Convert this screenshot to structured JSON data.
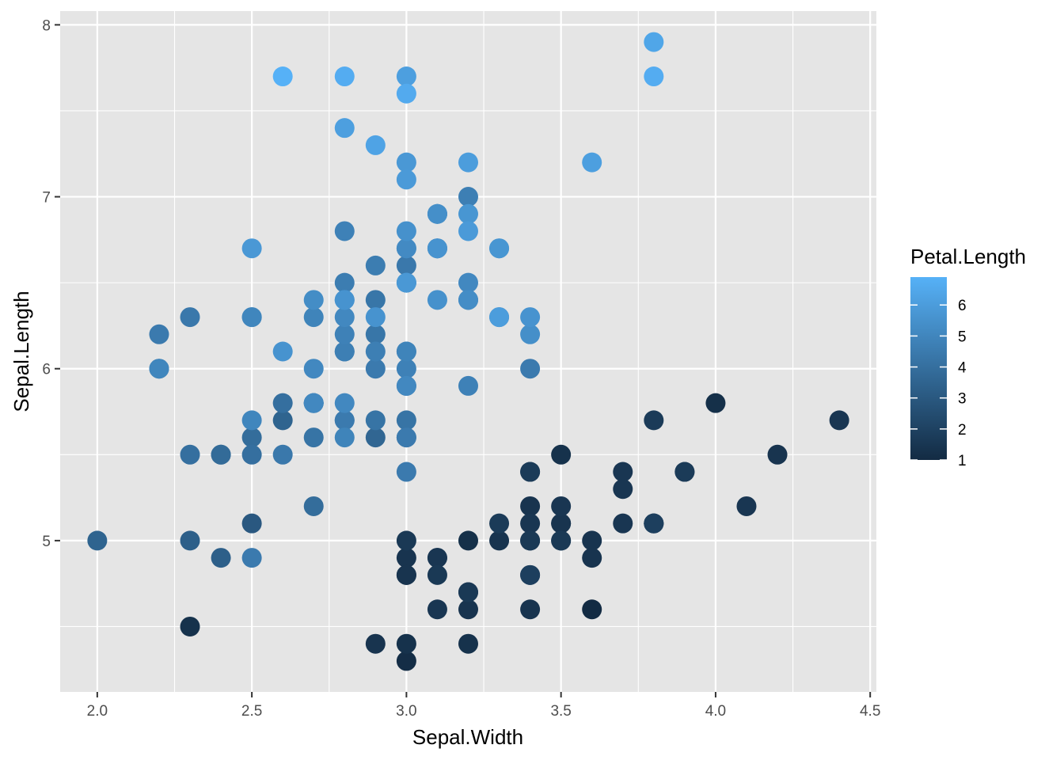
{
  "chart_data": {
    "type": "scatter",
    "title": "",
    "xlabel": "Sepal.Width",
    "ylabel": "Sepal.Length",
    "xlim": [
      1.88,
      4.52
    ],
    "ylim": [
      4.12,
      8.08
    ],
    "x_ticks": [
      2.0,
      2.5,
      3.0,
      3.5,
      4.0,
      4.5
    ],
    "x_tick_labels": [
      "2.0",
      "2.5",
      "3.0",
      "3.5",
      "4.0",
      "4.5"
    ],
    "y_ticks": [
      5,
      6,
      7,
      8
    ],
    "y_tick_labels": [
      "5",
      "6",
      "7",
      "8"
    ],
    "grid": true,
    "panel_background": "#e5e5e5",
    "grid_color": "#ffffff",
    "color_by": "Petal.Length",
    "legend": {
      "title": "Petal.Length",
      "position": "right",
      "type": "colorbar",
      "low_color": "#132b43",
      "high_color": "#56b1f7",
      "range": [
        1.0,
        6.9
      ],
      "ticks": [
        1,
        2,
        3,
        4,
        5,
        6
      ],
      "tick_labels": [
        "1",
        "2",
        "3",
        "4",
        "5",
        "6"
      ]
    },
    "points": [
      [
        3.5,
        5.1,
        1.4
      ],
      [
        3.0,
        4.9,
        1.4
      ],
      [
        3.2,
        4.7,
        1.3
      ],
      [
        3.1,
        4.6,
        1.5
      ],
      [
        3.6,
        5.0,
        1.4
      ],
      [
        3.9,
        5.4,
        1.7
      ],
      [
        3.4,
        4.6,
        1.4
      ],
      [
        3.4,
        5.0,
        1.5
      ],
      [
        2.9,
        4.4,
        1.4
      ],
      [
        3.1,
        4.9,
        1.5
      ],
      [
        3.7,
        5.4,
        1.5
      ],
      [
        3.4,
        4.8,
        1.6
      ],
      [
        3.0,
        4.8,
        1.4
      ],
      [
        3.0,
        4.3,
        1.1
      ],
      [
        4.0,
        5.8,
        1.2
      ],
      [
        4.4,
        5.7,
        1.5
      ],
      [
        3.9,
        5.4,
        1.3
      ],
      [
        3.5,
        5.1,
        1.4
      ],
      [
        3.8,
        5.7,
        1.7
      ],
      [
        3.8,
        5.1,
        1.5
      ],
      [
        3.4,
        5.4,
        1.7
      ],
      [
        3.7,
        5.1,
        1.5
      ],
      [
        3.6,
        4.6,
        1.0
      ],
      [
        3.3,
        5.1,
        1.7
      ],
      [
        3.4,
        4.8,
        1.9
      ],
      [
        3.0,
        5.0,
        1.6
      ],
      [
        3.4,
        5.0,
        1.6
      ],
      [
        3.5,
        5.2,
        1.5
      ],
      [
        3.4,
        5.2,
        1.4
      ],
      [
        3.2,
        4.7,
        1.6
      ],
      [
        3.1,
        4.8,
        1.6
      ],
      [
        3.4,
        5.4,
        1.5
      ],
      [
        4.1,
        5.2,
        1.5
      ],
      [
        4.2,
        5.5,
        1.4
      ],
      [
        3.1,
        4.9,
        1.5
      ],
      [
        3.2,
        5.0,
        1.2
      ],
      [
        3.5,
        5.5,
        1.3
      ],
      [
        3.6,
        4.9,
        1.4
      ],
      [
        3.0,
        4.4,
        1.3
      ],
      [
        3.4,
        5.1,
        1.5
      ],
      [
        3.5,
        5.0,
        1.3
      ],
      [
        2.3,
        4.5,
        1.3
      ],
      [
        3.2,
        4.4,
        1.3
      ],
      [
        3.5,
        5.0,
        1.6
      ],
      [
        3.8,
        5.1,
        1.9
      ],
      [
        3.0,
        4.8,
        1.4
      ],
      [
        3.8,
        5.1,
        1.6
      ],
      [
        3.2,
        4.6,
        1.4
      ],
      [
        3.7,
        5.3,
        1.5
      ],
      [
        3.3,
        5.0,
        1.4
      ],
      [
        3.2,
        7.0,
        4.7
      ],
      [
        3.2,
        6.4,
        4.5
      ],
      [
        3.1,
        6.9,
        4.9
      ],
      [
        2.3,
        5.5,
        4.0
      ],
      [
        2.8,
        6.5,
        4.6
      ],
      [
        2.8,
        5.7,
        4.5
      ],
      [
        3.3,
        6.3,
        4.7
      ],
      [
        2.4,
        4.9,
        3.3
      ],
      [
        2.9,
        6.6,
        4.6
      ],
      [
        2.7,
        5.2,
        3.9
      ],
      [
        2.0,
        5.0,
        3.5
      ],
      [
        3.0,
        5.9,
        4.2
      ],
      [
        2.2,
        6.0,
        4.0
      ],
      [
        2.9,
        6.1,
        4.7
      ],
      [
        2.9,
        5.6,
        3.6
      ],
      [
        3.1,
        6.7,
        4.4
      ],
      [
        3.0,
        5.6,
        4.5
      ],
      [
        2.7,
        5.8,
        4.1
      ],
      [
        2.2,
        6.2,
        4.5
      ],
      [
        2.5,
        5.6,
        3.9
      ],
      [
        3.2,
        5.9,
        4.8
      ],
      [
        2.8,
        6.1,
        4.0
      ],
      [
        2.5,
        6.3,
        4.9
      ],
      [
        2.8,
        6.1,
        4.7
      ],
      [
        2.9,
        6.4,
        4.3
      ],
      [
        3.0,
        6.6,
        4.4
      ],
      [
        2.8,
        6.8,
        4.8
      ],
      [
        3.0,
        6.7,
        5.0
      ],
      [
        2.9,
        6.0,
        4.5
      ],
      [
        2.6,
        5.7,
        3.5
      ],
      [
        2.4,
        5.5,
        3.8
      ],
      [
        2.4,
        5.5,
        3.7
      ],
      [
        2.7,
        5.8,
        3.9
      ],
      [
        2.7,
        6.0,
        5.1
      ],
      [
        3.0,
        5.4,
        4.5
      ],
      [
        3.4,
        6.0,
        4.5
      ],
      [
        3.1,
        6.7,
        4.7
      ],
      [
        2.3,
        6.3,
        4.4
      ],
      [
        3.0,
        5.6,
        4.1
      ],
      [
        2.5,
        5.5,
        4.0
      ],
      [
        2.6,
        5.5,
        4.4
      ],
      [
        3.0,
        6.1,
        4.6
      ],
      [
        2.6,
        5.8,
        4.0
      ],
      [
        2.3,
        5.0,
        3.3
      ],
      [
        2.7,
        5.6,
        4.2
      ],
      [
        3.0,
        5.7,
        4.2
      ],
      [
        2.9,
        5.7,
        4.2
      ],
      [
        2.9,
        6.2,
        4.3
      ],
      [
        2.5,
        5.1,
        3.0
      ],
      [
        2.8,
        5.7,
        4.1
      ],
      [
        3.3,
        6.3,
        6.0
      ],
      [
        2.7,
        5.8,
        5.1
      ],
      [
        3.0,
        7.1,
        5.9
      ],
      [
        2.9,
        6.3,
        5.6
      ],
      [
        3.0,
        6.5,
        5.8
      ],
      [
        3.0,
        7.6,
        6.6
      ],
      [
        2.5,
        4.9,
        4.5
      ],
      [
        2.9,
        7.3,
        6.3
      ],
      [
        2.5,
        6.7,
        5.8
      ],
      [
        3.6,
        7.2,
        6.1
      ],
      [
        3.2,
        6.5,
        5.1
      ],
      [
        2.7,
        6.4,
        5.3
      ],
      [
        3.0,
        6.8,
        5.5
      ],
      [
        2.5,
        5.7,
        5.0
      ],
      [
        2.8,
        5.8,
        5.1
      ],
      [
        3.2,
        6.4,
        5.3
      ],
      [
        3.0,
        6.5,
        5.5
      ],
      [
        3.8,
        7.7,
        6.7
      ],
      [
        2.6,
        7.7,
        6.9
      ],
      [
        2.2,
        6.0,
        5.0
      ],
      [
        3.2,
        6.9,
        5.7
      ],
      [
        2.8,
        5.6,
        4.9
      ],
      [
        2.8,
        7.7,
        6.7
      ],
      [
        2.7,
        6.3,
        4.9
      ],
      [
        3.3,
        6.7,
        5.7
      ],
      [
        3.2,
        7.2,
        6.0
      ],
      [
        2.8,
        6.2,
        4.8
      ],
      [
        3.0,
        6.1,
        4.9
      ],
      [
        2.8,
        6.4,
        5.6
      ],
      [
        3.0,
        7.2,
        5.8
      ],
      [
        2.8,
        7.4,
        6.1
      ],
      [
        3.8,
        7.9,
        6.4
      ],
      [
        2.8,
        6.4,
        5.6
      ],
      [
        2.8,
        6.3,
        5.1
      ],
      [
        2.6,
        6.1,
        5.6
      ],
      [
        3.0,
        7.7,
        6.1
      ],
      [
        3.4,
        6.3,
        5.6
      ],
      [
        3.1,
        6.4,
        5.5
      ],
      [
        3.0,
        6.0,
        4.8
      ],
      [
        3.1,
        6.9,
        5.4
      ],
      [
        3.1,
        6.7,
        5.6
      ],
      [
        3.1,
        6.9,
        5.1
      ],
      [
        2.7,
        5.8,
        5.1
      ],
      [
        3.2,
        6.8,
        5.9
      ],
      [
        3.3,
        6.7,
        5.7
      ],
      [
        3.0,
        6.7,
        5.2
      ],
      [
        2.5,
        6.3,
        5.0
      ],
      [
        3.0,
        6.5,
        5.2
      ],
      [
        3.4,
        6.2,
        5.4
      ],
      [
        3.0,
        5.9,
        5.1
      ]
    ]
  }
}
